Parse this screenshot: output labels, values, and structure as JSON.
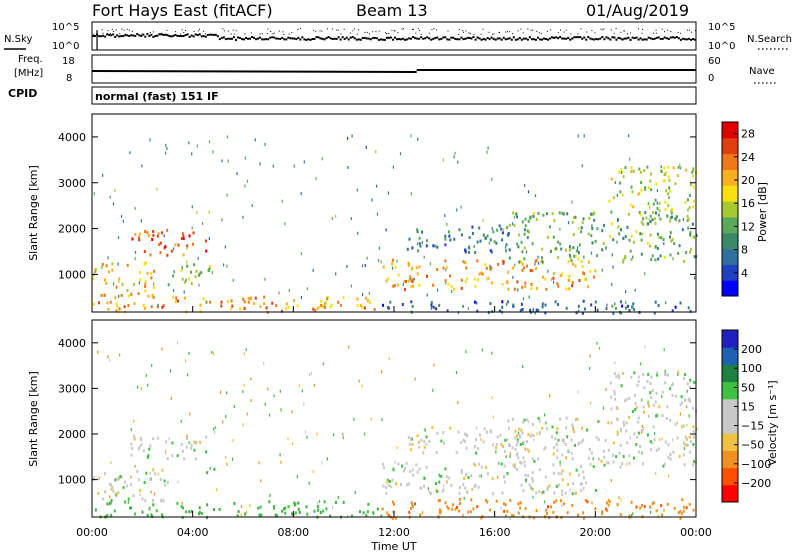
{
  "header": {
    "station": "Fort Hays East (fitACF)",
    "beam": "Beam 13",
    "date": "01/Aug/2019"
  },
  "noise_panel": {
    "left_label": "N.Sky",
    "left_ticks": [
      "10^5",
      "10^0"
    ],
    "right_label": "N.Search",
    "right_ticks": [
      "10^5",
      "10^0"
    ]
  },
  "freq_panel": {
    "left_label_1": "Freq.",
    "left_label_2": "[MHz]",
    "left_ticks": [
      "18",
      "8"
    ],
    "right_label": "Nave",
    "right_ticks": [
      "60",
      "0"
    ]
  },
  "cpid": {
    "label": "CPID",
    "value": "normal (fast) 151 IF"
  },
  "colors": {
    "power_scale": [
      "#0000ff",
      "#2040c0",
      "#3070a0",
      "#3a8a6a",
      "#5aa85a",
      "#a8c830",
      "#f8e010",
      "#f8b020",
      "#f07818",
      "#e04010",
      "#e00000"
    ],
    "velocity_scale": [
      "#ff0000",
      "#ff5000",
      "#f09020",
      "#f0c040",
      "#c8c8c8",
      "#c8c8c8",
      "#40c040",
      "#208040",
      "#2060b0",
      "#2020c0"
    ]
  },
  "chart_data": [
    {
      "type": "heatmap",
      "name": "power",
      "xlabel": "Time UT",
      "ylabel": "Slant Range [km]",
      "ylim": [
        180,
        4500
      ],
      "xlim": [
        0,
        24
      ],
      "yticks": [
        "4000",
        "3000",
        "2000",
        "1000"
      ],
      "colorbar_label": "Power [dB]",
      "colorbar_ticks": [
        "28",
        "24",
        "20",
        "16",
        "12",
        "8",
        "4"
      ],
      "colorbar_range": [
        0,
        30
      ],
      "regions": [
        {
          "t0": 0.0,
          "t1": 11.5,
          "r0": 200,
          "r1": 550,
          "level": 22
        },
        {
          "t0": 0.0,
          "t1": 2.5,
          "r0": 550,
          "r1": 1300,
          "level": 20
        },
        {
          "t0": 1.5,
          "t1": 4.5,
          "r0": 1450,
          "r1": 2000,
          "level": 26
        },
        {
          "t0": 3.0,
          "t1": 5.0,
          "r0": 800,
          "r1": 1250,
          "level": 14
        },
        {
          "t0": 11.5,
          "t1": 20.0,
          "r0": 700,
          "r1": 1350,
          "level": 22
        },
        {
          "t0": 12.5,
          "t1": 17.0,
          "r0": 1500,
          "r1": 2100,
          "level": 8
        },
        {
          "t0": 16.5,
          "t1": 24.0,
          "r0": 1300,
          "r1": 2400,
          "level": 12
        },
        {
          "t0": 20.5,
          "t1": 24.0,
          "r0": 2400,
          "r1": 3400,
          "level": 16
        },
        {
          "t0": 11.5,
          "t1": 24.0,
          "r0": 180,
          "r1": 450,
          "level": 6
        }
      ]
    },
    {
      "type": "heatmap",
      "name": "velocity",
      "xlabel": "Time UT",
      "ylabel": "Slant Range [km]",
      "ylim": [
        180,
        4500
      ],
      "xlim": [
        0,
        24
      ],
      "xticks": [
        "00:00",
        "04:00",
        "08:00",
        "12:00",
        "16:00",
        "20:00",
        "00:00"
      ],
      "yticks": [
        "4000",
        "3000",
        "2000",
        "1000"
      ],
      "colorbar_label": "Velocity [m s⁻¹]",
      "colorbar_ticks": [
        "200",
        "100",
        "50",
        "15",
        "−15",
        "−50",
        "−100",
        "−200"
      ],
      "regions": [
        {
          "t0": 0.0,
          "t1": 11.5,
          "r0": 200,
          "r1": 550,
          "velocity": 40
        },
        {
          "t0": 0.0,
          "t1": 3.0,
          "r0": 550,
          "r1": 1300,
          "velocity": 0
        },
        {
          "t0": 1.5,
          "t1": 4.5,
          "r0": 1450,
          "r1": 2000,
          "velocity": 0
        },
        {
          "t0": 4.5,
          "t1": 5.0,
          "r0": 1150,
          "r1": 1300,
          "velocity": 60
        },
        {
          "t0": 11.5,
          "t1": 24.0,
          "r0": 180,
          "r1": 600,
          "velocity": -60
        },
        {
          "t0": 11.5,
          "t1": 20.0,
          "r0": 700,
          "r1": 1400,
          "velocity": 0
        },
        {
          "t0": 12.5,
          "t1": 17.0,
          "r0": 1600,
          "r1": 2200,
          "velocity": 0
        },
        {
          "t0": 16.5,
          "t1": 24.0,
          "r0": 1300,
          "r1": 2400,
          "velocity": 0
        },
        {
          "t0": 20.5,
          "t1": 24.0,
          "r0": 2400,
          "r1": 3400,
          "velocity": 0
        }
      ]
    }
  ],
  "xaxis_label": "Time UT"
}
